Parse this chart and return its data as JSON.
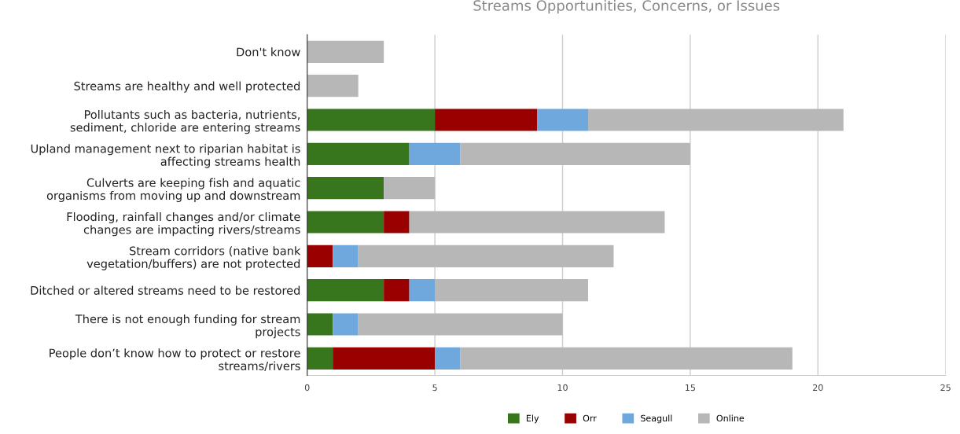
{
  "chart_data": {
    "type": "bar",
    "orientation": "horizontal",
    "stacked": true,
    "title": "Streams Opportunities, Concerns, or Issues",
    "categories": [
      "Don't know",
      "Streams are healthy and well protected",
      "Pollutants such as bacteria, nutrients,\nsediment, chloride are entering streams",
      "Upland management next to riparian habitat is\naffecting streams health",
      "Culverts are keeping fish and aquatic\norganisms from moving up and downstream",
      "Flooding, rainfall changes and/or climate\nchanges are impacting rivers/streams",
      "Stream corridors (native bank\nvegetation/buffers) are not protected",
      "Ditched or altered streams need to be restored",
      "There is not enough funding for stream\nprojects",
      "People don’t know how to protect or restore\nstreams/rivers"
    ],
    "series": [
      {
        "name": "Ely",
        "color": "#38761d",
        "values": [
          0,
          0,
          5,
          4,
          3,
          3,
          0,
          3,
          1,
          1
        ]
      },
      {
        "name": "Orr",
        "color": "#990000",
        "values": [
          0,
          0,
          4,
          0,
          0,
          1,
          1,
          1,
          0,
          4
        ]
      },
      {
        "name": "Seagull",
        "color": "#6fa8dc",
        "values": [
          0,
          0,
          2,
          2,
          0,
          0,
          1,
          1,
          1,
          1
        ]
      },
      {
        "name": "Online",
        "color": "#b7b7b7",
        "values": [
          3,
          2,
          10,
          9,
          2,
          10,
          10,
          6,
          8,
          13
        ]
      }
    ],
    "xlim": [
      0,
      25
    ],
    "xticks": [
      0,
      5,
      10,
      15,
      20,
      25
    ],
    "grid": "x",
    "legend": "bottom"
  }
}
